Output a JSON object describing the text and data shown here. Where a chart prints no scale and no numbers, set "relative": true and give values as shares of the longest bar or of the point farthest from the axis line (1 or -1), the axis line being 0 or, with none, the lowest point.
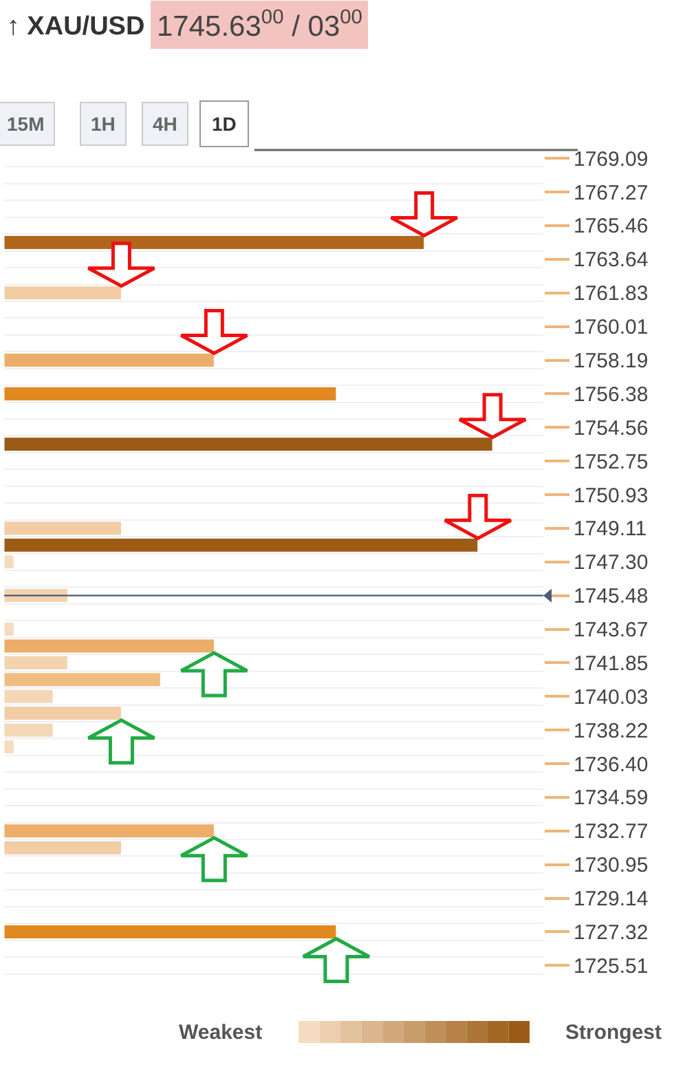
{
  "chart_data": {
    "type": "bar",
    "orientation": "horizontal",
    "relative": true,
    "title": "↑ XAU/USD",
    "subtitle": "1745.63$^{00}$ / 03$^{00}$",
    "categories": [
      "1769.09",
      null,
      "1767.27",
      null,
      "1765.46",
      null,
      "1763.64",
      null,
      "1761.83",
      null,
      "1760.01",
      null,
      "1758.19",
      null,
      "1756.38",
      null,
      "1754.56",
      null,
      "1752.75",
      null,
      "1750.93",
      null,
      "1749.11",
      null,
      "1747.30",
      null,
      "1745.48",
      null,
      "1743.67",
      null,
      "1741.85",
      null,
      "1740.03",
      null,
      "1738.22",
      null,
      "1736.40",
      null,
      "1734.59",
      null,
      "1732.77",
      null,
      "1730.95",
      null,
      "1729.14",
      null,
      "1727.32",
      null,
      "1725.51",
      null
    ],
    "values": [
      null,
      null,
      null,
      null,
      null,
      0.86,
      null,
      null,
      0.24,
      null,
      null,
      null,
      0.43,
      null,
      0.68,
      null,
      null,
      1,
      null,
      null,
      null,
      null,
      0.24,
      0.97,
      0.02,
      null,
      0.13,
      null,
      0.02,
      0.43,
      0.13,
      0.32,
      0.1,
      0.24,
      0.1,
      0.02,
      null,
      null,
      null,
      null,
      0.43,
      0.24,
      null,
      null,
      null,
      null,
      0.68,
      null,
      null,
      null
    ],
    "colors": [
      null,
      null,
      null,
      null,
      null,
      "#b0661a",
      null,
      null,
      "#f2cda3",
      null,
      null,
      null,
      "#ebad67",
      null,
      "#e0891f",
      null,
      null,
      "#9b5b15",
      null,
      null,
      null,
      null,
      "#f2cda3",
      "#9c5c15",
      "#f5dcc0",
      null,
      "#f3d3ad",
      null,
      "#f5dcc0",
      "#ebad67",
      "#f3d3ad",
      "#efbd82",
      "#f4d7b6",
      "#f2cda3",
      "#f4d7b6",
      "#f5dcc0",
      null,
      null,
      null,
      null,
      "#ebad67",
      "#f2cda3",
      null,
      null,
      null,
      null,
      "#e0891f",
      null,
      null,
      null
    ],
    "ref_lines": [
      {
        "axis": "y",
        "value": "1745.48",
        "color": "#4a5a78"
      }
    ],
    "grid": "y",
    "annotations": [
      "15M",
      "1H",
      "4H",
      "1D",
      "Weakest",
      "Strongest"
    ]
  }
}
